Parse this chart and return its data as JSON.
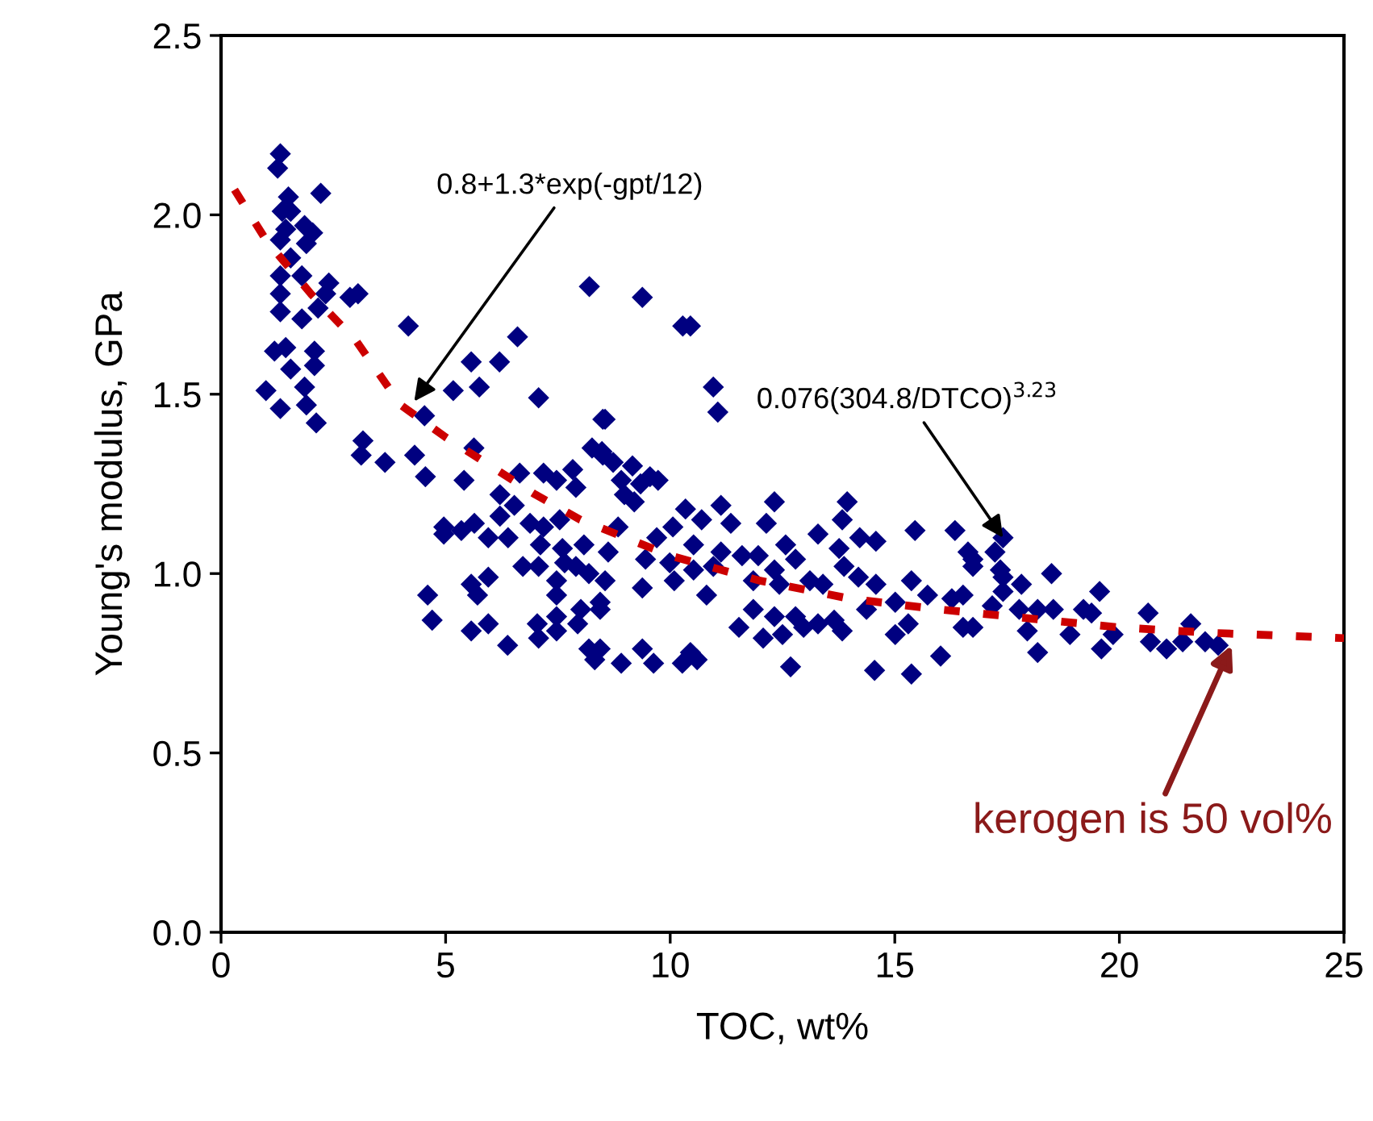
{
  "chart_data": {
    "type": "scatter",
    "xlabel": "TOC, wt%",
    "ylabel": "Young's modulus, GPa",
    "xlim": [
      0,
      25
    ],
    "ylim": [
      0,
      2.5
    ],
    "xticks": [
      0,
      5,
      10,
      15,
      20,
      25
    ],
    "yticks": [
      {
        "value": 0,
        "label": "0.0"
      },
      {
        "value": 0.5,
        "label": "0.5"
      },
      {
        "value": 1,
        "label": "1.0"
      },
      {
        "value": 1.5,
        "label": "1.5"
      },
      {
        "value": 2,
        "label": "2.0"
      },
      {
        "value": 2.5,
        "label": "2.5"
      }
    ],
    "grid": false,
    "legend": false,
    "marker": "diamond",
    "series": [
      {
        "color": "#000080",
        "x": [
          1.32,
          1.26,
          2.22,
          1.5,
          1.36,
          1.55,
          1.86,
          1.44,
          2.04,
          1.32,
          1.9,
          1.55,
          1.32,
          1.8,
          2.4,
          2.33,
          2.87,
          3.05,
          1.32,
          1.32,
          1.8,
          2.16,
          1.19,
          1.44,
          2.08,
          1.55,
          2.08,
          1.0,
          1.86,
          1.32,
          1.9,
          2.12,
          4.17,
          6.6,
          5.57,
          6.2,
          5.17,
          5.75,
          7.07,
          8.2,
          8.5,
          4.53,
          3.16,
          3.12,
          3.65,
          4.31,
          4.55,
          5.63,
          5.41,
          4.96,
          4.96,
          5.35,
          5.64,
          5.95,
          6.39,
          6.21,
          6.21,
          6.65,
          7.18,
          7.47,
          7.83,
          7.9,
          8.26,
          8.5,
          6.53,
          6.88,
          7.18,
          7.11,
          7.54,
          7.6,
          8.08,
          7.65,
          7.9,
          8.19,
          6.72,
          7.07,
          5.95,
          5.57,
          5.71,
          4.6,
          4.7,
          5.57,
          5.95,
          6.38,
          7.04,
          7.07,
          7.47,
          7.47,
          7.47,
          7.47,
          7.94,
          8.01,
          8.19,
          8.32,
          8.44,
          9.38,
          10.28,
          10.45,
          10.96,
          11.06,
          8.55,
          8.48,
          8.73,
          9.16,
          8.91,
          9.55,
          9.73,
          9.34,
          8.98,
          9.2,
          12.32,
          13.94,
          13.83,
          11.13,
          10.34,
          10.7,
          11.35,
          12.14,
          13.29,
          15.45,
          16.34,
          14.22,
          14.58,
          8.84,
          10.06,
          9.7,
          10.52,
          12.57,
          8.62,
          9.45,
          11.13,
          11.6,
          11.96,
          12.79,
          13.76,
          16.63,
          16.74,
          9.99,
          10.52,
          10.96,
          12.32,
          13.87,
          8.55,
          9.38,
          10.09,
          10.81,
          11.85,
          12.43,
          13.11,
          13.4,
          14.19,
          14.58,
          15.37,
          15.73,
          15.01,
          16.27,
          16.52,
          8.44,
          11.85,
          12.32,
          12.79,
          13.29,
          13.65,
          13.83,
          14.37,
          15.3,
          15.01,
          16.52,
          11.53,
          12.07,
          12.5,
          12.97,
          8.44,
          9.38,
          8.91,
          9.63,
          10.45,
          10.6,
          10.27,
          12.68,
          14.55,
          15.37,
          16.02,
          17.41,
          17.23,
          16.74,
          17.35,
          17.41,
          18.49,
          17.82,
          17.41,
          19.56,
          17.17,
          17.77,
          18.18,
          18.53,
          19.2,
          19.38,
          20.64,
          21.59,
          16.74,
          17.95,
          18.9,
          19.86,
          20.69,
          21.05,
          21.41,
          21.91,
          22.2,
          18.18,
          19.6
        ],
        "values": [
          2.17,
          2.13,
          2.06,
          2.05,
          2.01,
          2.01,
          1.97,
          1.96,
          1.95,
          1.93,
          1.92,
          1.88,
          1.83,
          1.83,
          1.81,
          1.78,
          1.77,
          1.78,
          1.78,
          1.73,
          1.71,
          1.74,
          1.62,
          1.63,
          1.62,
          1.57,
          1.58,
          1.51,
          1.52,
          1.46,
          1.47,
          1.42,
          1.69,
          1.66,
          1.59,
          1.59,
          1.51,
          1.52,
          1.49,
          1.8,
          1.43,
          1.44,
          1.37,
          1.33,
          1.31,
          1.33,
          1.27,
          1.35,
          1.26,
          1.13,
          1.11,
          1.12,
          1.14,
          1.1,
          1.1,
          1.16,
          1.22,
          1.28,
          1.28,
          1.26,
          1.29,
          1.24,
          1.35,
          1.33,
          1.19,
          1.14,
          1.13,
          1.08,
          1.15,
          1.07,
          1.08,
          1.03,
          1.02,
          1.0,
          1.02,
          1.02,
          0.99,
          0.97,
          0.94,
          0.94,
          0.87,
          0.84,
          0.86,
          0.8,
          0.86,
          0.82,
          0.98,
          0.94,
          0.88,
          0.84,
          0.86,
          0.9,
          0.79,
          0.76,
          0.92,
          1.77,
          1.69,
          1.69,
          1.52,
          1.45,
          1.43,
          1.34,
          1.31,
          1.3,
          1.26,
          1.27,
          1.26,
          1.25,
          1.22,
          1.2,
          1.2,
          1.2,
          1.15,
          1.19,
          1.18,
          1.15,
          1.14,
          1.14,
          1.11,
          1.12,
          1.12,
          1.1,
          1.09,
          1.13,
          1.13,
          1.1,
          1.08,
          1.08,
          1.06,
          1.04,
          1.06,
          1.05,
          1.05,
          1.04,
          1.07,
          1.06,
          1.02,
          1.03,
          1.01,
          1.02,
          1.01,
          1.02,
          0.98,
          0.96,
          0.98,
          0.94,
          0.98,
          0.97,
          0.98,
          0.97,
          0.99,
          0.97,
          0.98,
          0.94,
          0.92,
          0.93,
          0.94,
          0.9,
          0.9,
          0.88,
          0.88,
          0.86,
          0.87,
          0.84,
          0.9,
          0.86,
          0.83,
          0.85,
          0.85,
          0.82,
          0.83,
          0.85,
          0.79,
          0.79,
          0.75,
          0.75,
          0.78,
          0.76,
          0.75,
          0.74,
          0.73,
          0.72,
          0.77,
          1.1,
          1.06,
          1.04,
          1.01,
          0.99,
          1.0,
          0.97,
          0.95,
          0.95,
          0.91,
          0.9,
          0.9,
          0.9,
          0.9,
          0.89,
          0.89,
          0.86,
          0.85,
          0.84,
          0.83,
          0.83,
          0.81,
          0.79,
          0.81,
          0.81,
          0.8,
          0.78,
          0.79
        ]
      },
      {
        "type": "line",
        "color": "#cc0000",
        "line_style": "dashed",
        "marker": "none",
        "x": [
          0.3,
          1,
          2,
          3,
          4,
          5,
          6,
          7,
          8,
          9,
          10,
          12,
          14,
          16,
          18,
          20,
          22,
          23,
          25
        ],
        "values": [
          2.07,
          1.93,
          1.78,
          1.65,
          1.47,
          1.38,
          1.3,
          1.22,
          1.15,
          1.1,
          1.05,
          0.98,
          0.93,
          0.9,
          0.875,
          0.85,
          0.835,
          0.83,
          0.82
        ]
      }
    ],
    "annotations": [
      {
        "text": "0.8+1.3*exp(-gpt/12)",
        "x": 4.3,
        "y": 1.48
      },
      {
        "text": "0.076(304.8/DTCO)$^{3.23}$",
        "x": 17.41,
        "y": 1.1
      },
      {
        "text": "kerogen is 50 vol%",
        "x": 22.5,
        "y": 0.8
      }
    ]
  }
}
